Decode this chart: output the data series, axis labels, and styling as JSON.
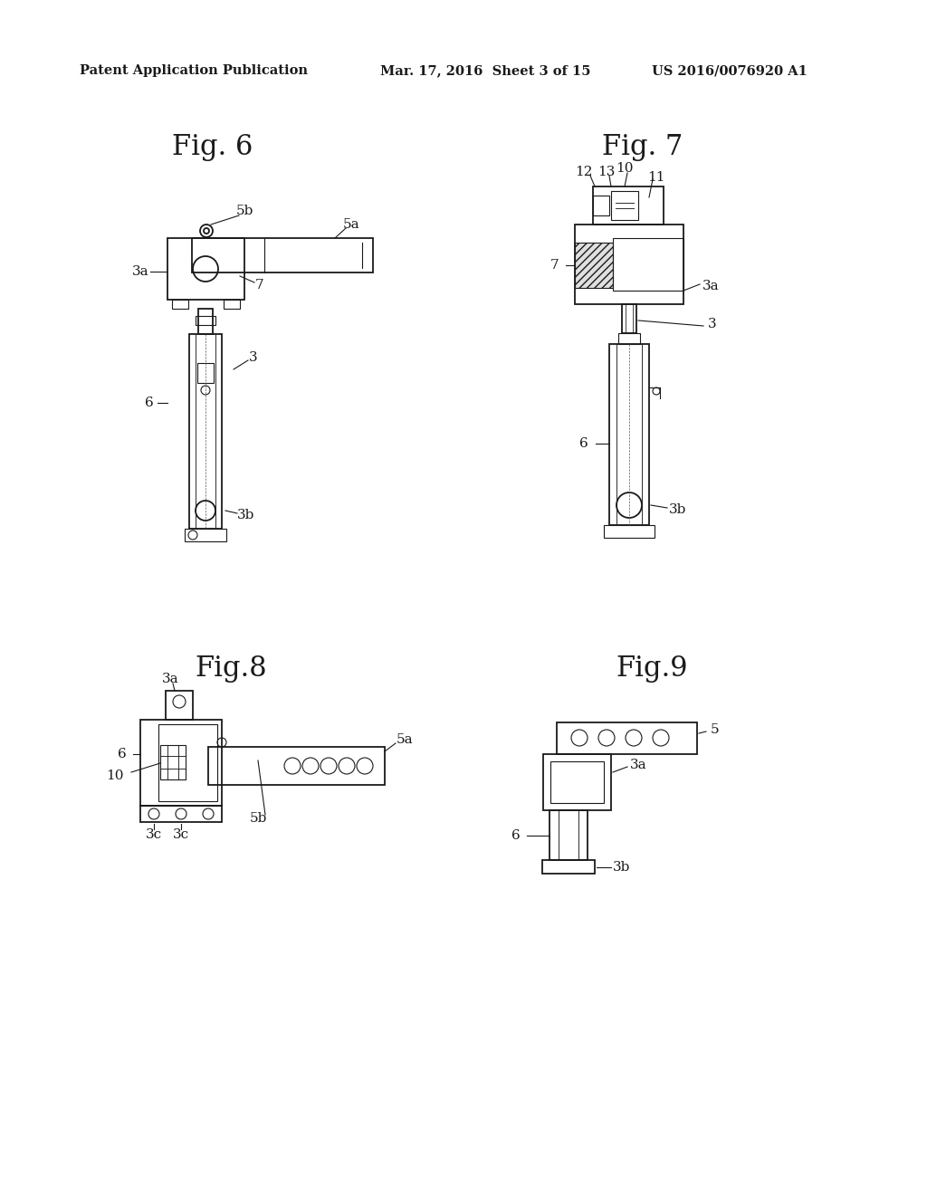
{
  "bg_color": "#ffffff",
  "header_left": "Patent Application Publication",
  "header_center": "Mar. 17, 2016  Sheet 3 of 15",
  "header_right": "US 2016/0076920 A1",
  "fig6_title": "Fig. 6",
  "fig7_title": "Fig. 7",
  "fig8_title": "Fig.8",
  "fig9_title": "Fig.9",
  "line_color": "#1a1a1a",
  "text_color": "#1a1a1a",
  "fig_title_fontsize": 22,
  "label_fontsize": 11,
  "header_fontsize": 10.5
}
